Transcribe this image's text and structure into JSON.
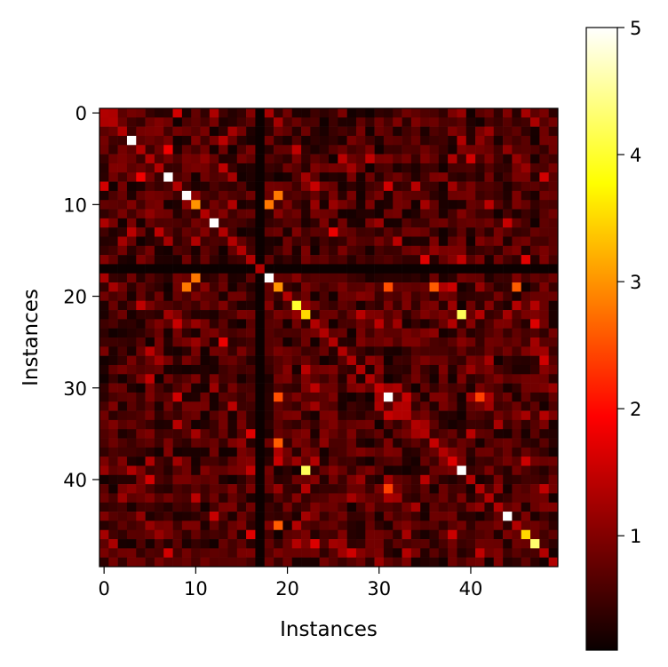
{
  "chart_data": {
    "type": "heatmap",
    "colormap": "hot",
    "xlabel": "Instances",
    "ylabel": "Instances",
    "rows": 50,
    "cols": 50,
    "vmin": 0.1,
    "vmax": 5,
    "x_ticks": [
      0,
      10,
      20,
      30,
      40
    ],
    "y_ticks": [
      0,
      10,
      20,
      30,
      40
    ],
    "colorbar_ticks": [
      1,
      2,
      3,
      4,
      5
    ],
    "grid": false,
    "highlighted_cells": [
      {
        "row": 3,
        "col": 3,
        "value": 5.0
      },
      {
        "row": 7,
        "col": 7,
        "value": 5.0
      },
      {
        "row": 9,
        "col": 9,
        "value": 5.0
      },
      {
        "row": 10,
        "col": 10,
        "value": 3.0
      },
      {
        "row": 12,
        "col": 12,
        "value": 5.0
      },
      {
        "row": 18,
        "col": 18,
        "value": 5.0
      },
      {
        "row": 19,
        "col": 19,
        "value": 3.0
      },
      {
        "row": 21,
        "col": 21,
        "value": 4.0
      },
      {
        "row": 22,
        "col": 22,
        "value": 3.5
      },
      {
        "row": 22,
        "col": 39,
        "value": 4.2
      },
      {
        "row": 31,
        "col": 31,
        "value": 5.0
      },
      {
        "row": 39,
        "col": 39,
        "value": 5.0
      },
      {
        "row": 39,
        "col": 22,
        "value": 4.2
      },
      {
        "row": 44,
        "col": 44,
        "value": 5.0
      },
      {
        "row": 46,
        "col": 46,
        "value": 3.5
      },
      {
        "row": 47,
        "col": 47,
        "value": 4.3
      },
      {
        "row": 19,
        "col": 9,
        "value": 2.8
      },
      {
        "row": 10,
        "col": 18,
        "value": 2.8
      },
      {
        "row": 19,
        "col": 31,
        "value": 2.5
      },
      {
        "row": 19,
        "col": 36,
        "value": 2.6
      },
      {
        "row": 45,
        "col": 19,
        "value": 2.6
      },
      {
        "row": 31,
        "col": 41,
        "value": 2.4
      },
      {
        "row": 17,
        "col": 0,
        "value": 0.1
      }
    ]
  }
}
